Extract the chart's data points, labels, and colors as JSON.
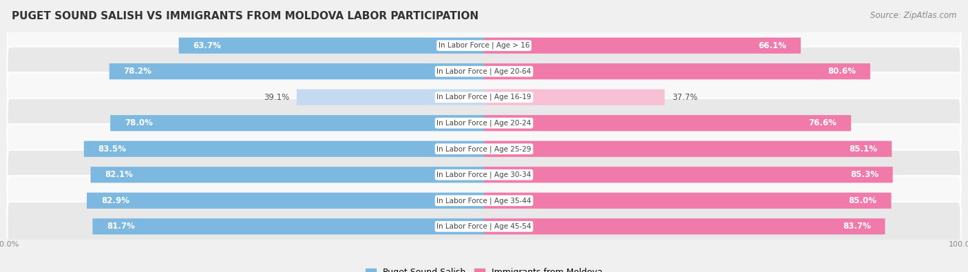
{
  "title": "PUGET SOUND SALISH VS IMMIGRANTS FROM MOLDOVA LABOR PARTICIPATION",
  "source": "Source: ZipAtlas.com",
  "categories": [
    "In Labor Force | Age > 16",
    "In Labor Force | Age 20-64",
    "In Labor Force | Age 16-19",
    "In Labor Force | Age 20-24",
    "In Labor Force | Age 25-29",
    "In Labor Force | Age 30-34",
    "In Labor Force | Age 35-44",
    "In Labor Force | Age 45-54"
  ],
  "left_values": [
    63.7,
    78.2,
    39.1,
    78.0,
    83.5,
    82.1,
    82.9,
    81.7
  ],
  "right_values": [
    66.1,
    80.6,
    37.7,
    76.6,
    85.1,
    85.3,
    85.0,
    83.7
  ],
  "left_color": "#7DB8E0",
  "right_color": "#F07BAA",
  "left_color_light": "#C5DAF0",
  "right_color_light": "#F8C0D5",
  "left_label": "Puget Sound Salish",
  "right_label": "Immigrants from Moldova",
  "bar_height": 0.62,
  "xlim": 100.0,
  "bg_color": "#f0f0f0",
  "row_bg_light": "#f8f8f8",
  "row_bg_dark": "#e8e8e8",
  "title_fontsize": 11,
  "source_fontsize": 8.5,
  "bar_fontsize": 8.5,
  "label_fontsize": 7.5,
  "axis_label_fontsize": 8
}
